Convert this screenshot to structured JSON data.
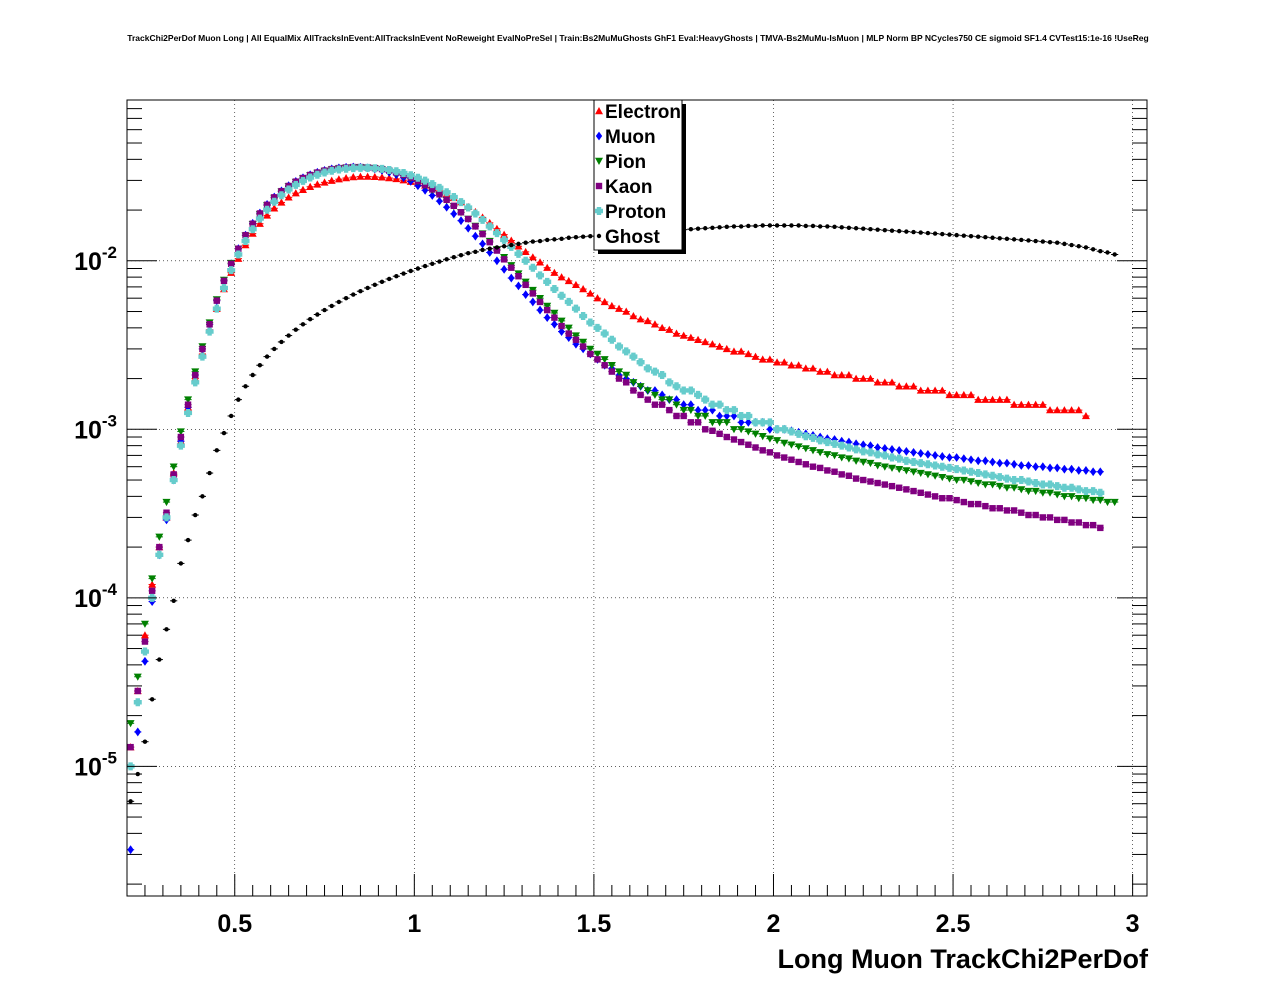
{
  "title": "TrackChi2PerDof Muon Long | All EqualMix AllTracksInEvent:AllTracksInEvent NoReweight EvalNoPreSel | Train:Bs2MuMuGhosts GhF1 Eval:HeavyGhosts | TMVA-Bs2MuMu-IsMuon | MLP Norm BP NCycles750 CE sigmoid SF1.4 CVTest15:1e-16 !UseReg",
  "chart_data": {
    "type": "scatter",
    "title": "TrackChi2PerDof Muon Long | All EqualMix AllTracksInEvent:AllTracksInEvent NoReweight EvalNoPreSel | Train:Bs2MuMuGhosts GhF1 Eval:HeavyGhosts | TMVA-Bs2MuMu-IsMuon | MLP Norm BP NCycles750 CE sigmoid SF1.4 CVTest15:1e-16 !UseReg",
    "xlabel": "Long Muon TrackChi2PerDof",
    "ylabel": "",
    "xlim": [
      0.2,
      3.04
    ],
    "ylim": [
      1.7e-06,
      0.09
    ],
    "yscale": "log",
    "grid": true,
    "legend_position": "top-center",
    "xticks": [
      {
        "value": 0.5,
        "label": "0.5"
      },
      {
        "value": 1,
        "label": "1"
      },
      {
        "value": 1.5,
        "label": "1.5"
      },
      {
        "value": 2,
        "label": "2"
      },
      {
        "value": 2.5,
        "label": "2.5"
      },
      {
        "value": 3,
        "label": "3"
      }
    ],
    "yticks": [
      {
        "value": 0.01,
        "base": "10",
        "exp": "-2"
      },
      {
        "value": 0.001,
        "base": "10",
        "exp": "-3"
      },
      {
        "value": 0.0001,
        "base": "10",
        "exp": "-4"
      },
      {
        "value": 1e-05,
        "base": "10",
        "exp": "-5"
      }
    ],
    "x": [
      0.21,
      0.23,
      0.25,
      0.27,
      0.29,
      0.31,
      0.33,
      0.35,
      0.37,
      0.39,
      0.41,
      0.43,
      0.45,
      0.47,
      0.49,
      0.51,
      0.53,
      0.55,
      0.57,
      0.59,
      0.61,
      0.63,
      0.65,
      0.67,
      0.69,
      0.71,
      0.73,
      0.75,
      0.77,
      0.79,
      0.81,
      0.83,
      0.85,
      0.87,
      0.89,
      0.91,
      0.93,
      0.95,
      0.97,
      0.99,
      1.01,
      1.03,
      1.05,
      1.07,
      1.09,
      1.11,
      1.13,
      1.15,
      1.17,
      1.19,
      1.21,
      1.23,
      1.25,
      1.27,
      1.29,
      1.31,
      1.33,
      1.35,
      1.37,
      1.39,
      1.41,
      1.43,
      1.45,
      1.47,
      1.49,
      1.51,
      1.53,
      1.55,
      1.57,
      1.59,
      1.61,
      1.63,
      1.65,
      1.67,
      1.69,
      1.71,
      1.73,
      1.75,
      1.77,
      1.79,
      1.81,
      1.83,
      1.85,
      1.87,
      1.89,
      1.91,
      1.93,
      1.95,
      1.97,
      1.99,
      2.01,
      2.03,
      2.05,
      2.07,
      2.09,
      2.11,
      2.13,
      2.15,
      2.17,
      2.19,
      2.21,
      2.23,
      2.25,
      2.27,
      2.29,
      2.31,
      2.33,
      2.35,
      2.37,
      2.39,
      2.41,
      2.43,
      2.45,
      2.47,
      2.49,
      2.51,
      2.53,
      2.55,
      2.57,
      2.59,
      2.61,
      2.63,
      2.65,
      2.67,
      2.69,
      2.71,
      2.73,
      2.75,
      2.77,
      2.79,
      2.81,
      2.83,
      2.85,
      2.87,
      2.89,
      2.91,
      2.93,
      2.95,
      2.97,
      2.99
    ],
    "series": [
      {
        "name": "Electron",
        "color": "#ff0000",
        "marker": "triangle-up",
        "values": [
          1.3e-05,
          2.8e-05,
          6e-05,
          0.00012,
          0.0002,
          0.0003,
          0.00055,
          0.00085,
          0.00135,
          0.002,
          0.0028,
          0.0039,
          0.0052,
          0.0068,
          0.0085,
          0.0103,
          0.0124,
          0.0145,
          0.0166,
          0.0186,
          0.0205,
          0.0222,
          0.0238,
          0.0252,
          0.0264,
          0.0275,
          0.0284,
          0.0292,
          0.0299,
          0.0305,
          0.031,
          0.0314,
          0.0316,
          0.0316,
          0.0315,
          0.0313,
          0.031,
          0.0306,
          0.0301,
          0.0295,
          0.0288,
          0.028,
          0.0271,
          0.026,
          0.0249,
          0.0236,
          0.0223,
          0.0209,
          0.0195,
          0.0181,
          0.0168,
          0.0155,
          0.0143,
          0.0132,
          0.0122,
          0.0113,
          0.0105,
          0.0098,
          0.0091,
          0.0085,
          0.008,
          0.0076,
          0.0072,
          0.0068,
          0.0064,
          0.006,
          0.0057,
          0.0054,
          0.0052,
          0.005,
          0.0047,
          0.0045,
          0.0044,
          0.0042,
          0.004,
          0.0039,
          0.0037,
          0.0036,
          0.0035,
          0.0034,
          0.0033,
          0.0032,
          0.0031,
          0.003,
          0.0029,
          0.0029,
          0.0028,
          0.0027,
          0.0026,
          0.0026,
          0.0025,
          0.0025,
          0.0024,
          0.0024,
          0.0023,
          0.0023,
          0.0022,
          0.0022,
          0.0021,
          0.0021,
          0.0021,
          0.002,
          0.002,
          0.002,
          0.0019,
          0.0019,
          0.0019,
          0.0018,
          0.0018,
          0.0018,
          0.0017,
          0.0017,
          0.0017,
          0.0017,
          0.0016,
          0.0016,
          0.0016,
          0.0016,
          0.0015,
          0.0015,
          0.0015,
          0.0015,
          0.0015,
          0.0014,
          0.0014,
          0.0014,
          0.0014,
          0.0014,
          0.0013,
          0.0013,
          0.0013,
          0.0013,
          0.0013,
          0.0012
        ]
      },
      {
        "name": "Muon",
        "color": "#0000ff",
        "marker": "diamond",
        "values": [
          3.2e-06,
          1.6e-05,
          4.2e-05,
          9.5e-05,
          0.00018,
          0.00029,
          0.0005,
          0.00085,
          0.00135,
          0.0021,
          0.003,
          0.0042,
          0.0058,
          0.0076,
          0.0096,
          0.0118,
          0.0142,
          0.0167,
          0.0192,
          0.0216,
          0.0239,
          0.026,
          0.0279,
          0.0296,
          0.0311,
          0.0324,
          0.0335,
          0.0344,
          0.0351,
          0.0356,
          0.0359,
          0.036,
          0.0359,
          0.0356,
          0.0351,
          0.0344,
          0.0335,
          0.0324,
          0.0311,
          0.0296,
          0.0279,
          0.0262,
          0.0244,
          0.0226,
          0.0208,
          0.019,
          0.0173,
          0.0156,
          0.014,
          0.0126,
          0.0112,
          0.01,
          0.0089,
          0.0079,
          0.0071,
          0.0063,
          0.0057,
          0.0051,
          0.0046,
          0.0042,
          0.0038,
          0.0035,
          0.0032,
          0.003,
          0.0028,
          0.0026,
          0.0024,
          0.0023,
          0.0021,
          0.002,
          0.0019,
          0.0018,
          0.0017,
          0.0017,
          0.0016,
          0.0015,
          0.0015,
          0.0014,
          0.0014,
          0.0013,
          0.0013,
          0.0013,
          0.0012,
          0.0012,
          0.0012,
          0.0011,
          0.0011,
          0.0011,
          0.0011,
          0.001,
          0.001,
          0.001,
          0.00098,
          0.00096,
          0.00094,
          0.00092,
          0.0009,
          0.00088,
          0.00087,
          0.00085,
          0.00084,
          0.00082,
          0.00081,
          0.0008,
          0.00078,
          0.00077,
          0.00076,
          0.00075,
          0.00074,
          0.00073,
          0.00072,
          0.00071,
          0.0007,
          0.00069,
          0.00068,
          0.00068,
          0.00067,
          0.00066,
          0.00065,
          0.00065,
          0.00064,
          0.00063,
          0.00063,
          0.00062,
          0.00061,
          0.00061,
          0.0006,
          0.0006,
          0.00059,
          0.00059,
          0.00058,
          0.00058,
          0.00057,
          0.00057,
          0.00056,
          0.00056
        ]
      },
      {
        "name": "Pion",
        "color": "#008000",
        "marker": "triangle-down",
        "values": [
          1.8e-05,
          3.4e-05,
          7e-05,
          0.00013,
          0.00023,
          0.00037,
          0.0006,
          0.00097,
          0.0015,
          0.0022,
          0.0031,
          0.0043,
          0.0059,
          0.0077,
          0.0097,
          0.0118,
          0.0141,
          0.0165,
          0.0189,
          0.0213,
          0.0236,
          0.0257,
          0.0276,
          0.0293,
          0.0308,
          0.0321,
          0.0332,
          0.0341,
          0.0348,
          0.0353,
          0.0356,
          0.0358,
          0.0358,
          0.0356,
          0.0353,
          0.0348,
          0.0341,
          0.0332,
          0.0321,
          0.0309,
          0.0295,
          0.028,
          0.0263,
          0.0246,
          0.0229,
          0.0211,
          0.0194,
          0.0177,
          0.0161,
          0.0145,
          0.0131,
          0.0117,
          0.0105,
          0.0094,
          0.0084,
          0.0075,
          0.0067,
          0.006,
          0.0054,
          0.0049,
          0.0044,
          0.004,
          0.0036,
          0.0033,
          0.003,
          0.0028,
          0.0026,
          0.0024,
          0.0022,
          0.0021,
          0.0019,
          0.0018,
          0.0017,
          0.0016,
          0.0015,
          0.0015,
          0.0014,
          0.0013,
          0.0013,
          0.0012,
          0.0012,
          0.0011,
          0.0011,
          0.0011,
          0.001,
          0.001,
          0.00097,
          0.00094,
          0.00091,
          0.00088,
          0.00086,
          0.00083,
          0.00081,
          0.00079,
          0.00077,
          0.00075,
          0.00073,
          0.00071,
          0.0007,
          0.00068,
          0.00067,
          0.00065,
          0.00064,
          0.00063,
          0.00061,
          0.0006,
          0.00059,
          0.00058,
          0.00057,
          0.00056,
          0.00055,
          0.00054,
          0.00053,
          0.00052,
          0.00051,
          0.0005,
          0.0005,
          0.00049,
          0.00048,
          0.00047,
          0.00047,
          0.00046,
          0.00045,
          0.00045,
          0.00044,
          0.00043,
          0.00043,
          0.00042,
          0.00042,
          0.00041,
          0.0004,
          0.0004,
          0.00039,
          0.00039,
          0.00038,
          0.00038,
          0.00037,
          0.00037
        ]
      },
      {
        "name": "Kaon",
        "color": "#800080",
        "marker": "square",
        "values": [
          1.3e-05,
          2.8e-05,
          5.5e-05,
          0.00011,
          0.0002,
          0.00032,
          0.00054,
          0.0009,
          0.0014,
          0.0021,
          0.003,
          0.0042,
          0.0058,
          0.0076,
          0.0096,
          0.0118,
          0.0142,
          0.0166,
          0.0191,
          0.0215,
          0.0238,
          0.0259,
          0.0278,
          0.0295,
          0.031,
          0.0323,
          0.0334,
          0.0343,
          0.035,
          0.0355,
          0.0358,
          0.036,
          0.036,
          0.0358,
          0.0355,
          0.035,
          0.0343,
          0.0334,
          0.0323,
          0.0311,
          0.0297,
          0.0282,
          0.0265,
          0.0248,
          0.023,
          0.0212,
          0.0194,
          0.0177,
          0.016,
          0.0144,
          0.0129,
          0.0115,
          0.0102,
          0.0091,
          0.0081,
          0.0072,
          0.0064,
          0.0057,
          0.0051,
          0.0046,
          0.0041,
          0.0037,
          0.0034,
          0.0031,
          0.0028,
          0.0026,
          0.0024,
          0.0022,
          0.002,
          0.0019,
          0.0017,
          0.0016,
          0.0015,
          0.0014,
          0.0014,
          0.0013,
          0.0012,
          0.0012,
          0.0011,
          0.0011,
          0.001,
          0.00098,
          0.00094,
          0.0009,
          0.00087,
          0.00084,
          0.00081,
          0.00078,
          0.00075,
          0.00073,
          0.0007,
          0.00068,
          0.00066,
          0.00064,
          0.00062,
          0.0006,
          0.00059,
          0.00057,
          0.00056,
          0.00054,
          0.00053,
          0.00051,
          0.0005,
          0.00049,
          0.00048,
          0.00047,
          0.00046,
          0.00045,
          0.00044,
          0.00043,
          0.00042,
          0.00041,
          0.0004,
          0.00039,
          0.00039,
          0.00038,
          0.00037,
          0.00036,
          0.00036,
          0.00035,
          0.00034,
          0.00034,
          0.00033,
          0.00033,
          0.00032,
          0.00031,
          0.00031,
          0.0003,
          0.0003,
          0.00029,
          0.00029,
          0.00028,
          0.00028,
          0.00027,
          0.00027,
          0.00026
        ]
      },
      {
        "name": "Proton",
        "color": "#66cccc",
        "marker": "cross",
        "values": [
          1e-05,
          2.4e-05,
          4.8e-05,
          0.0001,
          0.00018,
          0.0003,
          0.0005,
          0.0008,
          0.00125,
          0.0019,
          0.0027,
          0.0038,
          0.0052,
          0.0069,
          0.0088,
          0.0109,
          0.0131,
          0.0154,
          0.0178,
          0.0201,
          0.0224,
          0.0245,
          0.0265,
          0.0282,
          0.0298,
          0.0312,
          0.0324,
          0.0334,
          0.0342,
          0.0348,
          0.0352,
          0.0355,
          0.0356,
          0.0356,
          0.0354,
          0.0351,
          0.0346,
          0.034,
          0.0332,
          0.0322,
          0.0311,
          0.0299,
          0.0285,
          0.0271,
          0.0255,
          0.0239,
          0.0223,
          0.0207,
          0.0191,
          0.0175,
          0.016,
          0.0146,
          0.0133,
          0.0121,
          0.011,
          0.01,
          0.0091,
          0.0082,
          0.0075,
          0.0068,
          0.0062,
          0.0057,
          0.0052,
          0.0047,
          0.0043,
          0.004,
          0.0037,
          0.0034,
          0.0031,
          0.0029,
          0.0027,
          0.0025,
          0.0023,
          0.0022,
          0.0021,
          0.0019,
          0.0018,
          0.0017,
          0.0017,
          0.0016,
          0.0015,
          0.0014,
          0.0014,
          0.0013,
          0.0013,
          0.0012,
          0.0012,
          0.0011,
          0.0011,
          0.0011,
          0.001,
          0.001,
          0.00097,
          0.00094,
          0.00091,
          0.00089,
          0.00086,
          0.00084,
          0.00082,
          0.0008,
          0.00078,
          0.00076,
          0.00074,
          0.00073,
          0.00071,
          0.0007,
          0.00068,
          0.00067,
          0.00065,
          0.00064,
          0.00063,
          0.00062,
          0.00061,
          0.0006,
          0.00059,
          0.00058,
          0.00057,
          0.00056,
          0.00055,
          0.00054,
          0.00053,
          0.00052,
          0.00051,
          0.0005,
          0.0005,
          0.00049,
          0.00048,
          0.00047,
          0.00047,
          0.00046,
          0.00045,
          0.00045,
          0.00044,
          0.00043,
          0.00043,
          0.00042
        ]
      },
      {
        "name": "Ghost",
        "color": "#000000",
        "marker": "dot",
        "values": [
          6.2e-06,
          9e-06,
          1.4e-05,
          2.5e-05,
          4.3e-05,
          6.5e-05,
          9.6e-05,
          0.00016,
          0.00022,
          0.00031,
          0.0004,
          0.00055,
          0.00075,
          0.00095,
          0.0012,
          0.0015,
          0.0018,
          0.0021,
          0.0024,
          0.0027,
          0.003,
          0.0033,
          0.0036,
          0.0039,
          0.0042,
          0.0045,
          0.0048,
          0.0051,
          0.0054,
          0.0057,
          0.006,
          0.0063,
          0.0066,
          0.0069,
          0.0072,
          0.0075,
          0.0078,
          0.0081,
          0.0084,
          0.0087,
          0.009,
          0.0093,
          0.0096,
          0.0099,
          0.0102,
          0.0105,
          0.0108,
          0.0111,
          0.0113,
          0.0116,
          0.0118,
          0.012,
          0.0122,
          0.0124,
          0.0126,
          0.0128,
          0.013,
          0.0131,
          0.0133,
          0.0134,
          0.0135,
          0.0137,
          0.0138,
          0.0139,
          0.014,
          0.0141,
          0.0142,
          0.0143,
          0.0144,
          0.0145,
          0.0146,
          0.0147,
          0.0148,
          0.0149,
          0.015,
          0.0151,
          0.0152,
          0.0153,
          0.0154,
          0.0155,
          0.0156,
          0.0157,
          0.0158,
          0.0159,
          0.016,
          0.016,
          0.0161,
          0.0161,
          0.0162,
          0.0162,
          0.0162,
          0.0162,
          0.0162,
          0.0162,
          0.0161,
          0.0161,
          0.016,
          0.016,
          0.0159,
          0.0158,
          0.0157,
          0.0156,
          0.0155,
          0.0154,
          0.0153,
          0.0152,
          0.0151,
          0.015,
          0.0149,
          0.0148,
          0.0147,
          0.0146,
          0.0145,
          0.0144,
          0.0143,
          0.0142,
          0.0141,
          0.014,
          0.0139,
          0.0138,
          0.0137,
          0.0136,
          0.0135,
          0.0134,
          0.0133,
          0.0132,
          0.0131,
          0.013,
          0.0129,
          0.0128,
          0.0126,
          0.0124,
          0.0122,
          0.012,
          0.0117,
          0.0114,
          0.0112,
          0.0109
        ]
      }
    ]
  }
}
